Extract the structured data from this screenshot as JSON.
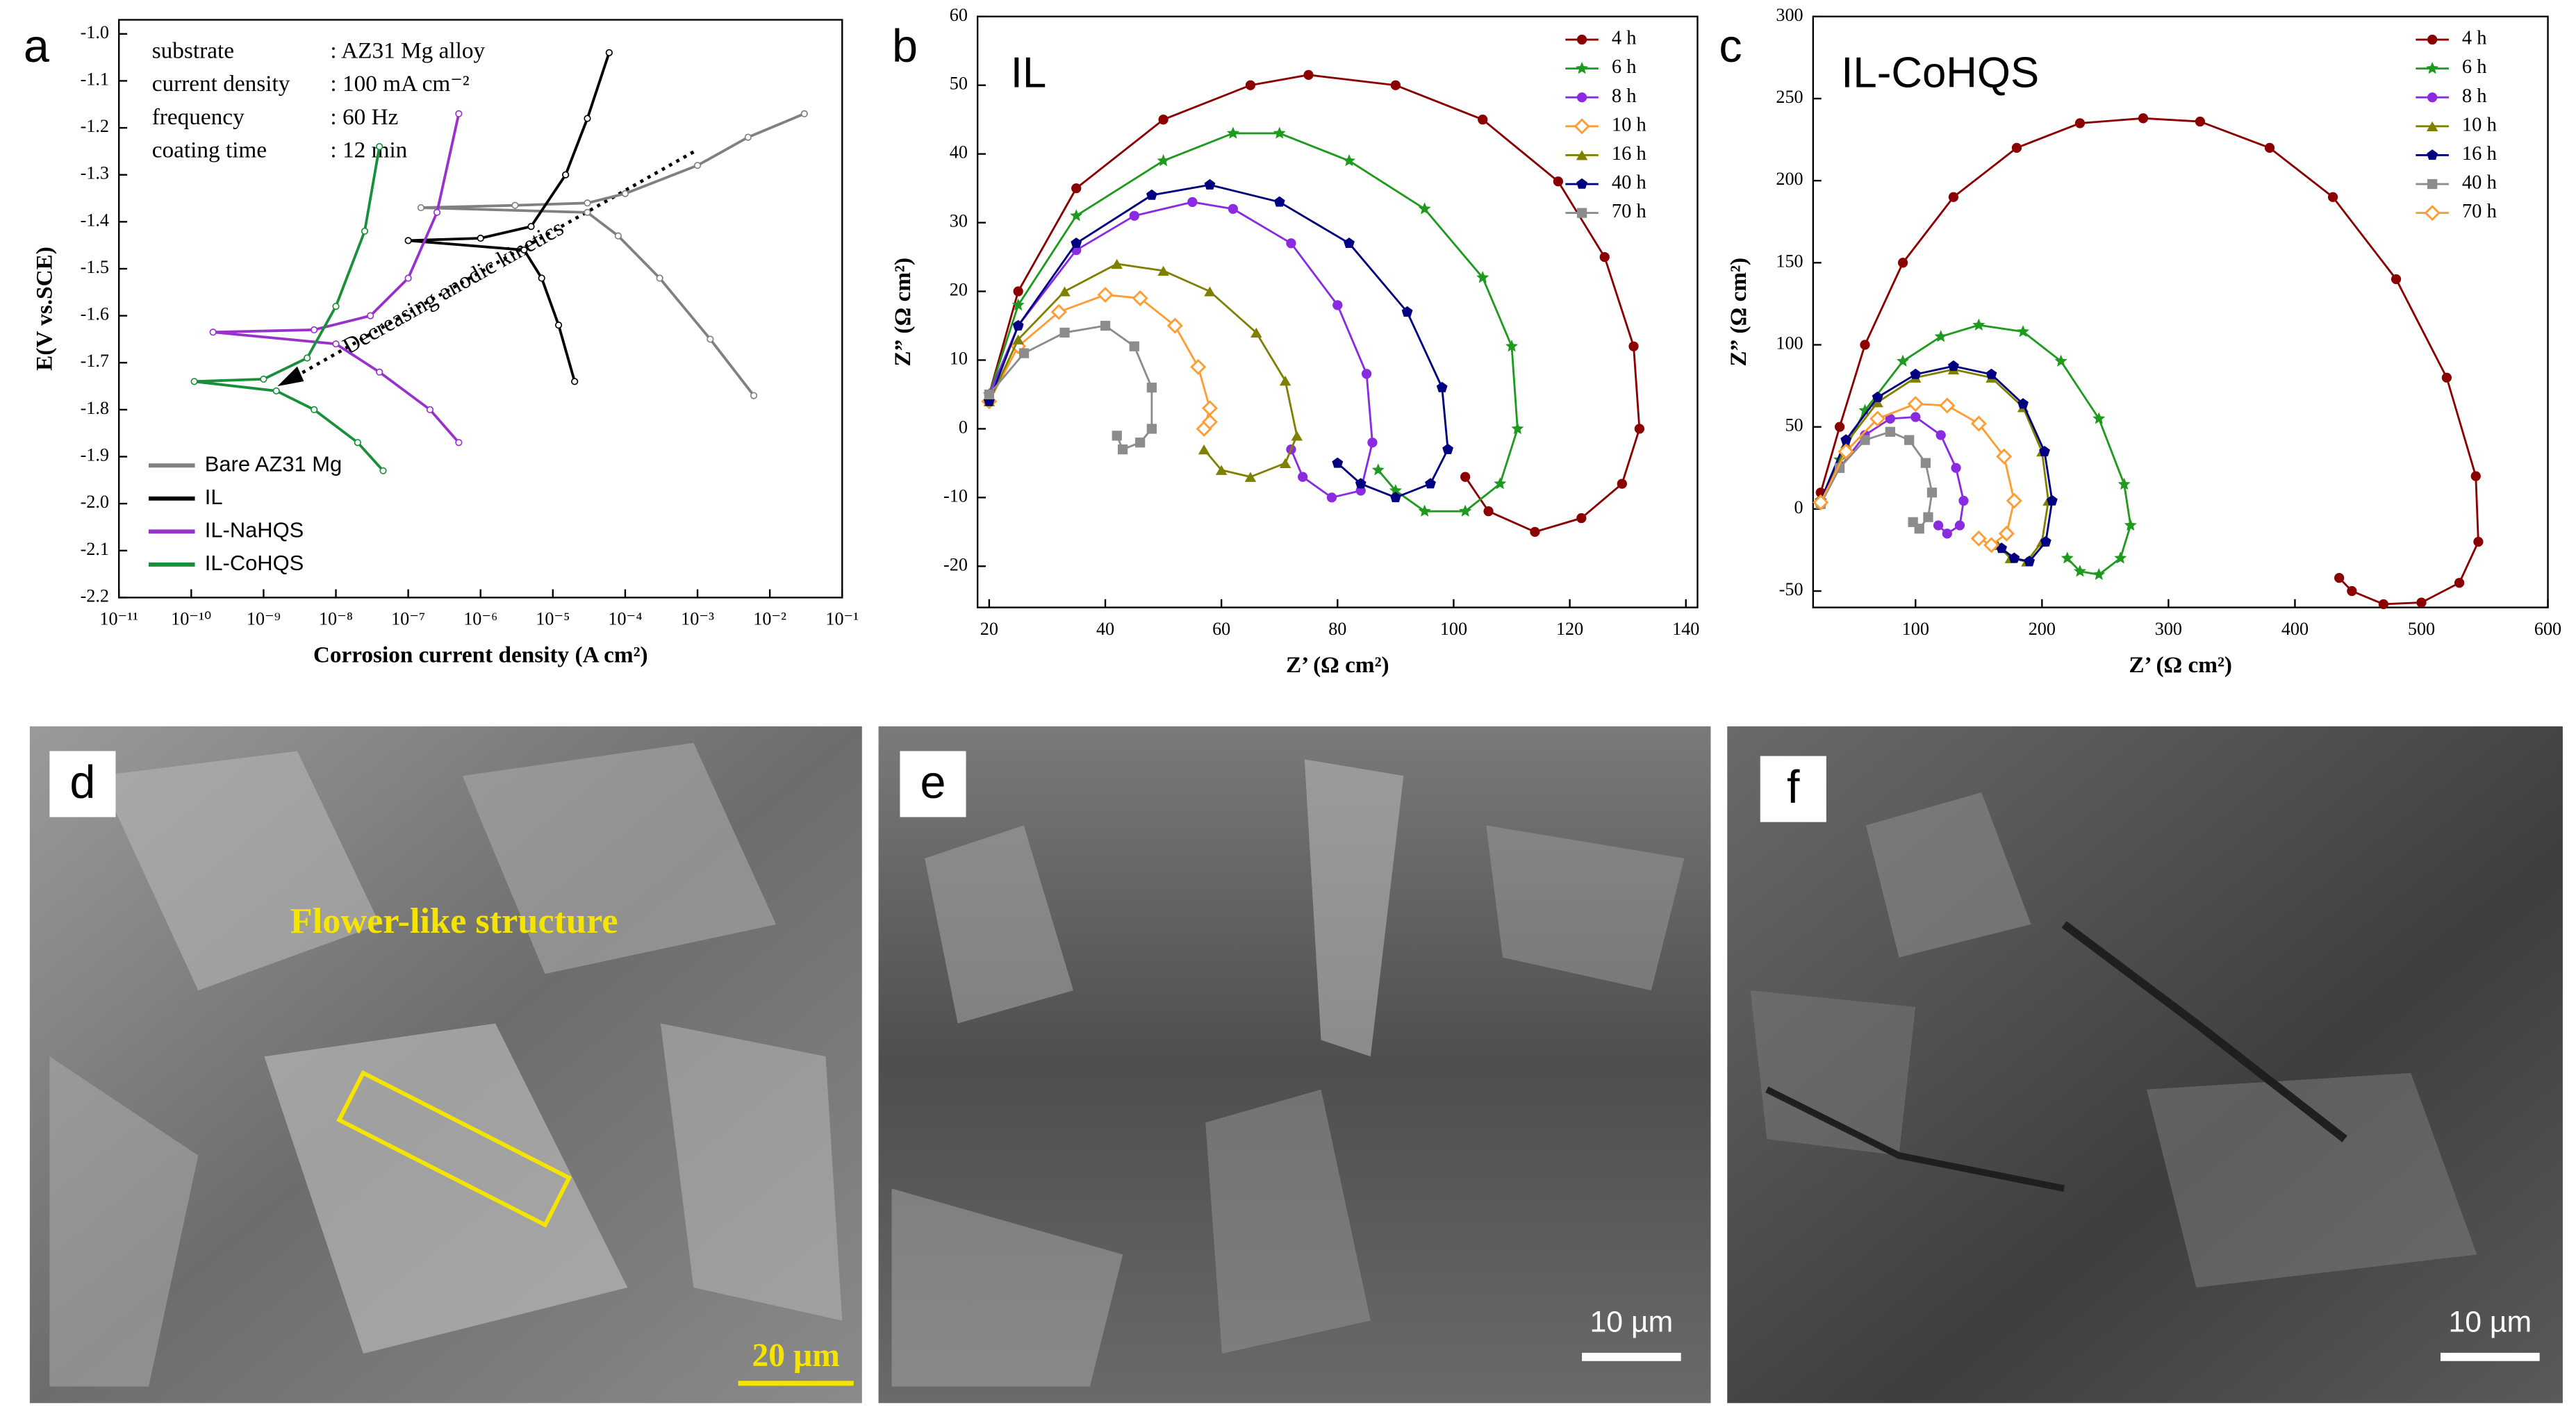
{
  "chart_data": [
    {
      "type": "line",
      "panel": "a",
      "xscale": "log",
      "xlabel": "Corrosion current density (A cm²)",
      "ylabel": "E(V vs.SCE)",
      "xlim": [
        1e-11,
        0.1
      ],
      "xticks": [
        {
          "value": 1e-11,
          "label": "10⁻¹¹"
        },
        {
          "value": 1e-10,
          "label": "10⁻¹⁰"
        },
        {
          "value": 1e-09,
          "label": "10⁻⁹"
        },
        {
          "value": 1e-08,
          "label": "10⁻⁸"
        },
        {
          "value": 1e-07,
          "label": "10⁻⁷"
        },
        {
          "value": 1e-06,
          "label": "10⁻⁶"
        },
        {
          "value": 1e-05,
          "label": "10⁻⁵"
        },
        {
          "value": 0.0001,
          "label": "10⁻⁴"
        },
        {
          "value": 0.001,
          "label": "10⁻³"
        },
        {
          "value": 0.01,
          "label": "10⁻²"
        },
        {
          "value": 0.1,
          "label": "10⁻¹"
        }
      ],
      "ylim": [
        -2.2,
        -0.97
      ],
      "yticks": [
        {
          "value": -1,
          "label": "-1.0"
        },
        -1.1,
        -1.2,
        -1.3,
        -1.4,
        -1.5,
        -1.6,
        -1.7,
        -1.8,
        -1.9,
        {
          "value": -2,
          "label": "-2.0"
        },
        -2.1,
        -2.2
      ],
      "conditions": [
        {
          "label": "substrate",
          "setting": ": AZ31 Mg alloy"
        },
        {
          "label": "current density",
          "setting": ": 100 mA cm⁻²"
        },
        {
          "label": "frequency",
          "setting": ": 60 Hz"
        },
        {
          "label": "coating time",
          "setting": ": 12 min"
        }
      ],
      "arrow_text": "Decreasing anodic kinetics",
      "legend": "lower left",
      "series": [
        {
          "name": "Bare AZ31 Mg",
          "color": "#808080",
          "marker": "open-circle",
          "x": [
            0.006,
            0.0015,
            0.0003,
            8e-05,
            3e-05,
            1.5e-07,
            3e-06,
            3e-05,
            0.0001,
            0.001,
            0.005,
            0.03
          ],
          "values": [
            -1.77,
            -1.65,
            -1.52,
            -1.43,
            -1.38,
            -1.37,
            -1.365,
            -1.36,
            -1.34,
            -1.28,
            -1.22,
            -1.17
          ]
        },
        {
          "name": "IL",
          "color": "#000000",
          "marker": "open-circle",
          "x": [
            2e-05,
            1.2e-05,
            7e-06,
            4e-06,
            1e-07,
            1e-06,
            5e-06,
            1.5e-05,
            3e-05,
            6e-05
          ],
          "values": [
            -1.74,
            -1.62,
            -1.52,
            -1.46,
            -1.44,
            -1.435,
            -1.41,
            -1.3,
            -1.18,
            -1.04
          ]
        },
        {
          "name": "IL-NaHQS",
          "color": "#9932cc",
          "marker": "open-circle",
          "x": [
            5e-07,
            2e-07,
            4e-08,
            1e-08,
            2e-10,
            5e-09,
            3e-08,
            1e-07,
            2.5e-07,
            5e-07
          ],
          "values": [
            -1.87,
            -1.8,
            -1.72,
            -1.66,
            -1.635,
            -1.63,
            -1.6,
            -1.52,
            -1.38,
            -1.17
          ]
        },
        {
          "name": "IL-CoHQS",
          "color": "#1a8f3a",
          "marker": "open-circle",
          "x": [
            4.5e-08,
            2e-08,
            5e-09,
            1.5e-09,
            1.1e-10,
            1e-09,
            4e-09,
            1e-08,
            2.5e-08,
            4e-08
          ],
          "values": [
            -1.93,
            -1.87,
            -1.8,
            -1.76,
            -1.74,
            -1.735,
            -1.69,
            -1.58,
            -1.42,
            -1.24
          ]
        }
      ]
    },
    {
      "type": "line",
      "panel": "b",
      "title": "IL",
      "xlabel": "Z’ (Ω cm²)",
      "ylabel": "Z” (Ω cm²)",
      "xlim": [
        18,
        142
      ],
      "xticks": [
        20,
        40,
        60,
        80,
        100,
        120,
        140
      ],
      "ylim": [
        -26,
        60
      ],
      "yticks": [
        -20,
        -10,
        0,
        10,
        20,
        30,
        40,
        50,
        60
      ],
      "legend": "upper right",
      "series": [
        {
          "name": "4 h",
          "color": "#8b0000",
          "marker": "circle",
          "x": [
            20,
            25,
            35,
            50,
            65,
            75,
            90,
            105,
            118,
            126,
            131,
            132,
            129,
            122,
            114,
            106,
            102
          ],
          "values": [
            5,
            20,
            35,
            45,
            50,
            51.5,
            50,
            45,
            36,
            25,
            12,
            0,
            -8,
            -13,
            -15,
            -12,
            -7
          ]
        },
        {
          "name": "6 h",
          "color": "#1e9a1e",
          "marker": "star",
          "x": [
            20,
            25,
            35,
            50,
            62,
            70,
            82,
            95,
            105,
            110,
            111,
            108,
            102,
            95,
            90,
            87
          ],
          "values": [
            5,
            18,
            31,
            39,
            43,
            43,
            39,
            32,
            22,
            12,
            0,
            -8,
            -12,
            -12,
            -9,
            -6
          ]
        },
        {
          "name": "8 h",
          "color": "#8a2be2",
          "marker": "circle",
          "x": [
            20,
            25,
            35,
            45,
            55,
            62,
            72,
            80,
            85,
            86,
            84,
            79,
            74,
            72
          ],
          "values": [
            5,
            15,
            26,
            31,
            33,
            32,
            27,
            18,
            8,
            -2,
            -9,
            -10,
            -7,
            -3
          ]
        },
        {
          "name": "10 h",
          "color": "#ff9c33",
          "marker": "diamond",
          "x": [
            20,
            25,
            32,
            40,
            46,
            52,
            56,
            58,
            57,
            58
          ],
          "values": [
            4,
            12,
            17,
            19.5,
            19,
            15,
            9,
            3,
            0,
            1
          ]
        },
        {
          "name": "16 h",
          "color": "#808000",
          "marker": "triangle",
          "x": [
            20,
            25,
            33,
            42,
            50,
            58,
            66,
            71,
            73,
            71,
            65,
            60,
            57
          ],
          "values": [
            4,
            13,
            20,
            24,
            23,
            20,
            14,
            7,
            -1,
            -5,
            -7,
            -6,
            -3
          ]
        },
        {
          "name": "40 h",
          "color": "#000080",
          "marker": "pentagon",
          "x": [
            20,
            25,
            35,
            48,
            58,
            70,
            82,
            92,
            98,
            99,
            96,
            90,
            84,
            80
          ],
          "values": [
            4,
            15,
            27,
            34,
            35.5,
            33,
            27,
            17,
            6,
            -3,
            -8,
            -10,
            -8,
            -5
          ]
        },
        {
          "name": "70 h",
          "color": "#8c8c8c",
          "marker": "square",
          "x": [
            20,
            26,
            33,
            40,
            45,
            48,
            48,
            46,
            43,
            42
          ],
          "values": [
            5,
            11,
            14,
            15,
            12,
            6,
            0,
            -2,
            -3,
            -1
          ]
        }
      ]
    },
    {
      "type": "line",
      "panel": "c",
      "title": "IL-CoHQS",
      "xlabel": "Z’ (Ω cm²)",
      "ylabel": "Z” (Ω cm²)",
      "xlim": [
        19,
        600
      ],
      "xticks": [
        100,
        200,
        300,
        400,
        500,
        600
      ],
      "ylim": [
        -60,
        300
      ],
      "yticks": [
        -50,
        0,
        50,
        100,
        150,
        200,
        250,
        300
      ],
      "legend": "upper right",
      "series": [
        {
          "name": "4 h",
          "color": "#8b0000",
          "marker": "circle",
          "x": [
            25,
            40,
            60,
            90,
            130,
            180,
            230,
            280,
            325,
            380,
            430,
            480,
            520,
            543,
            545,
            530,
            500,
            470,
            445,
            435
          ],
          "values": [
            10,
            50,
            100,
            150,
            190,
            220,
            235,
            238,
            236,
            220,
            190,
            140,
            80,
            20,
            -20,
            -45,
            -57,
            -58,
            -50,
            -42
          ]
        },
        {
          "name": "6 h",
          "color": "#1e9a1e",
          "marker": "star",
          "x": [
            25,
            40,
            60,
            90,
            120,
            150,
            185,
            215,
            245,
            265,
            270,
            262,
            245,
            230,
            220
          ],
          "values": [
            5,
            30,
            60,
            90,
            105,
            112,
            108,
            90,
            55,
            15,
            -10,
            -30,
            -40,
            -38,
            -30
          ]
        },
        {
          "name": "8 h",
          "color": "#8a2be2",
          "marker": "circle",
          "x": [
            25,
            40,
            60,
            80,
            100,
            120,
            132,
            138,
            135,
            125,
            118
          ],
          "values": [
            5,
            25,
            45,
            55,
            56,
            45,
            25,
            5,
            -10,
            -15,
            -10
          ]
        },
        {
          "name": "10 h",
          "color": "#808000",
          "marker": "triangle",
          "x": [
            25,
            45,
            70,
            100,
            130,
            160,
            185,
            200,
            205,
            200,
            188,
            175,
            165
          ],
          "values": [
            5,
            40,
            65,
            80,
            85,
            80,
            62,
            35,
            5,
            -20,
            -32,
            -30,
            -22
          ]
        },
        {
          "name": "16 h",
          "color": "#000080",
          "marker": "pentagon",
          "x": [
            25,
            45,
            70,
            100,
            130,
            160,
            185,
            202,
            208,
            203,
            190,
            178,
            168
          ],
          "values": [
            5,
            42,
            68,
            82,
            87,
            82,
            64,
            35,
            5,
            -20,
            -32,
            -30,
            -24
          ]
        },
        {
          "name": "40 h",
          "color": "#8c8c8c",
          "marker": "square",
          "x": [
            25,
            40,
            60,
            80,
            95,
            108,
            113,
            110,
            103,
            98
          ],
          "values": [
            3,
            25,
            42,
            47,
            42,
            28,
            10,
            -5,
            -12,
            -8
          ]
        },
        {
          "name": "70 h",
          "color": "#ff9c33",
          "marker": "diamond",
          "x": [
            25,
            45,
            70,
            100,
            125,
            150,
            170,
            178,
            172,
            160,
            150
          ],
          "values": [
            4,
            35,
            55,
            64,
            63,
            52,
            32,
            5,
            -15,
            -22,
            -18
          ]
        }
      ]
    }
  ],
  "images": [
    {
      "panel": "d",
      "caption": "Flower-like structure",
      "scale_bar": "20 µm"
    },
    {
      "panel": "e",
      "scale_bar": "10 µm"
    },
    {
      "panel": "f",
      "scale_bar": "10 µm"
    }
  ]
}
